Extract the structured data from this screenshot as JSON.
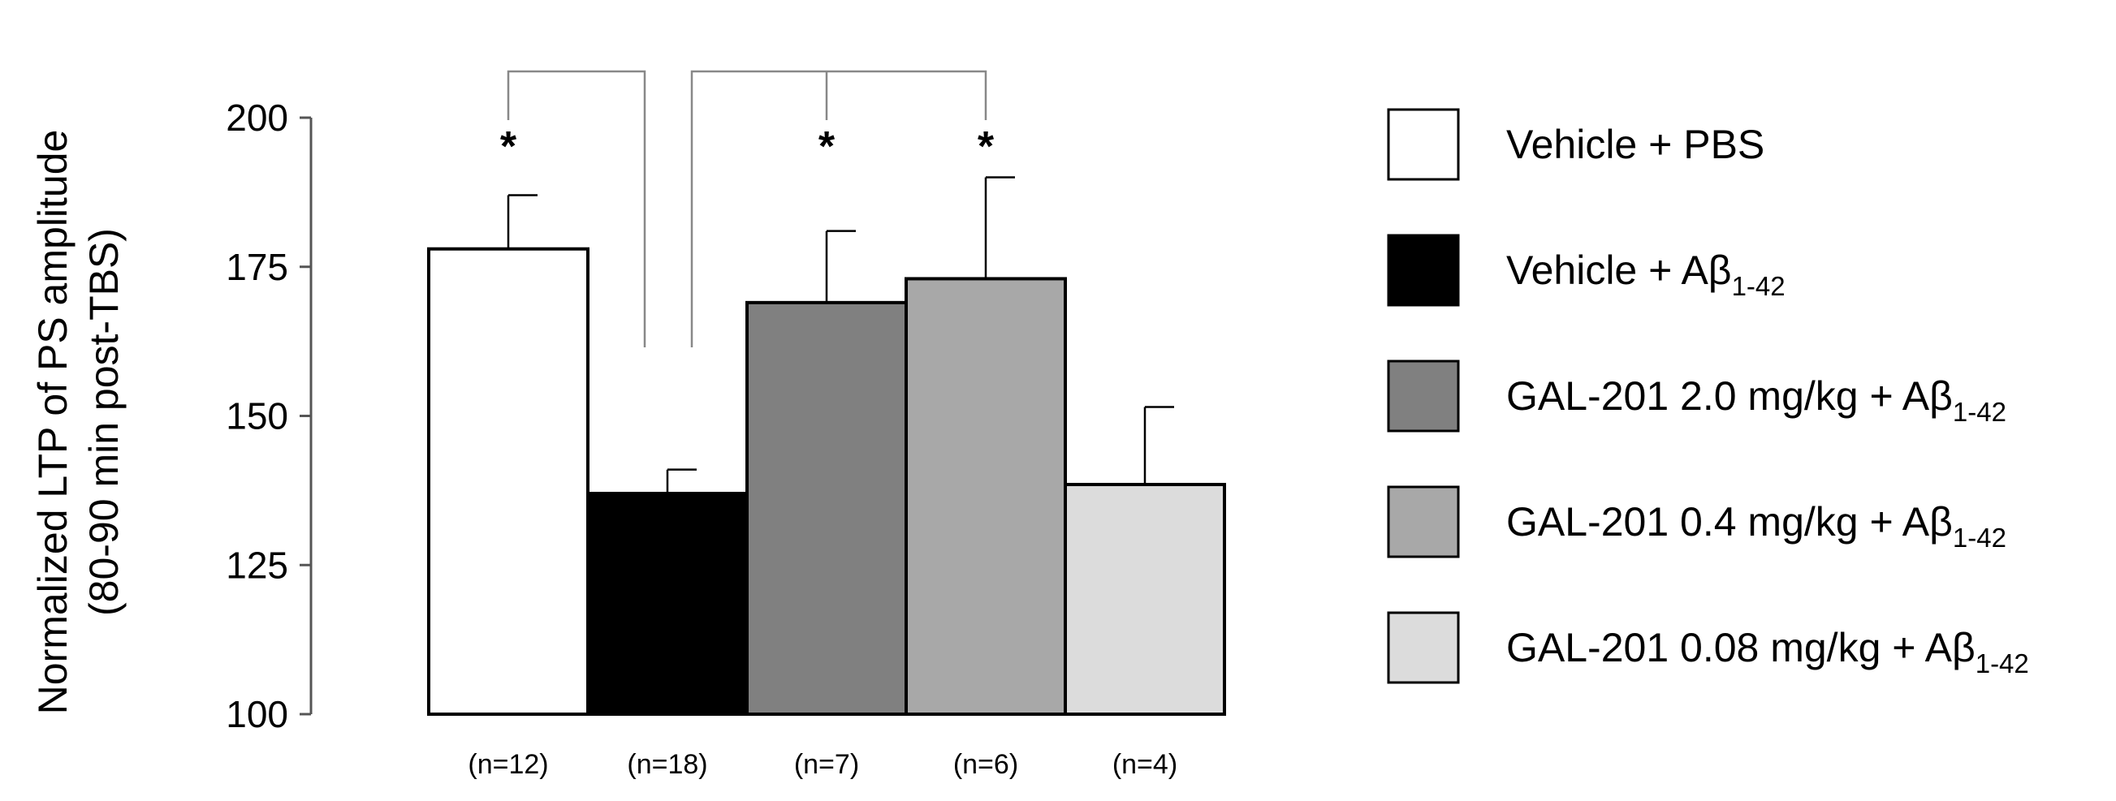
{
  "chart_data": {
    "type": "bar",
    "title": "",
    "ylabel_line1": "Normalized LTP of PS amplitude",
    "ylabel_line2": "(80-90 min post-TBS)",
    "xlabel": "",
    "ylim": [
      100,
      200
    ],
    "yticks": [
      100,
      125,
      150,
      175,
      200
    ],
    "grid": false,
    "legend_position": "right",
    "categories": [
      "(n=12)",
      "(n=18)",
      "(n=7)",
      "(n=6)",
      "(n=4)"
    ],
    "values": [
      178,
      137,
      169,
      173,
      138.5
    ],
    "errors": [
      9,
      4,
      12,
      17,
      13
    ],
    "significant": [
      true,
      false,
      true,
      true,
      false
    ],
    "significance_marker": "*",
    "colors": [
      "#ffffff",
      "#000000",
      "#808080",
      "#a8a8a8",
      "#dcdcdc"
    ],
    "legend": [
      {
        "main": "Vehicle + PBS",
        "sub": ""
      },
      {
        "main": "Vehicle + Aβ",
        "sub": "1-42"
      },
      {
        "main": "GAL-201  2.0 mg/kg + Aβ",
        "sub": "1-42"
      },
      {
        "main": "GAL-201  0.4 mg/kg + Aβ",
        "sub": "1-42"
      },
      {
        "main": "GAL-201  0.08 mg/kg + Aβ",
        "sub": "1-42"
      }
    ]
  }
}
